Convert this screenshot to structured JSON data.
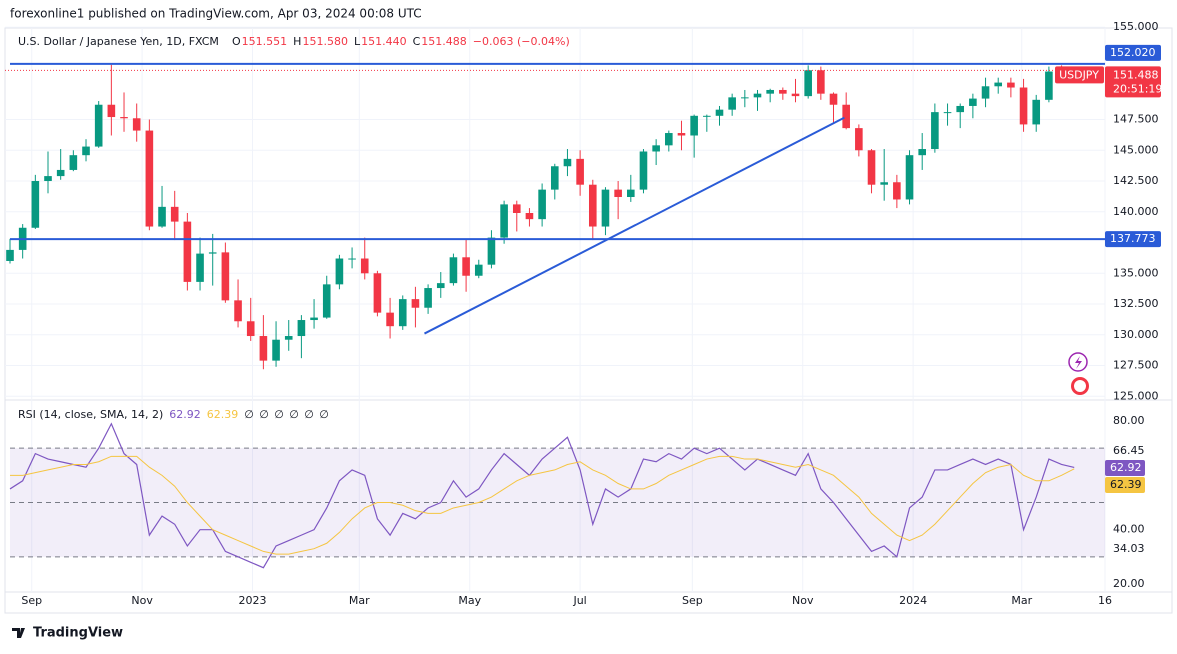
{
  "header": {
    "publisher": "forexonline1 published on TradingView.com, Apr 03, 2024 00:08 UTC",
    "instrument": "U.S. Dollar / Japanese Yen, 1D, FXCM",
    "legend": [
      {
        "key": "O",
        "value": "151.551"
      },
      {
        "key": "H",
        "value": "151.580"
      },
      {
        "key": "L",
        "value": "151.440"
      },
      {
        "key": "C",
        "value": "151.488"
      }
    ],
    "change": "−0.063 (−0.04%)",
    "brand": "TradingView"
  },
  "chart_data": [
    {
      "type": "candlestick",
      "up_color": "#089981",
      "down_color": "#f23645",
      "grid": true,
      "xlim": [
        0,
        605
      ],
      "xticks": [
        {
          "value": 12,
          "label": "Sep"
        },
        {
          "value": 73,
          "label": "Nov"
        },
        {
          "value": 134,
          "label": "2023"
        },
        {
          "value": 193,
          "label": "Mar"
        },
        {
          "value": 254,
          "label": "May"
        },
        {
          "value": 315,
          "label": "Jul"
        },
        {
          "value": 377,
          "label": "Sep"
        },
        {
          "value": 438,
          "label": "Nov"
        },
        {
          "value": 499,
          "label": "2024"
        },
        {
          "value": 559,
          "label": "Mar"
        },
        {
          "value": 605,
          "label": "16"
        }
      ],
      "ylim": [
        124.7,
        155.1
      ],
      "yticks": [
        {
          "value": 155,
          "label": "155.000"
        },
        {
          "value": 147.5,
          "label": "147.500"
        },
        {
          "value": 145,
          "label": "145.000"
        },
        {
          "value": 142.5,
          "label": "142.500"
        },
        {
          "value": 140,
          "label": "140.000"
        },
        {
          "value": 135,
          "label": "135.000"
        },
        {
          "value": 132.5,
          "label": "132.500"
        },
        {
          "value": 130,
          "label": "130.000"
        },
        {
          "value": 127.5,
          "label": "127.500"
        },
        {
          "value": 125,
          "label": "125.000"
        }
      ],
      "x": [
        0,
        7,
        14,
        21,
        28,
        35,
        42,
        49,
        56,
        63,
        70,
        77,
        84,
        91,
        98,
        105,
        112,
        119,
        126,
        133,
        140,
        147,
        154,
        161,
        168,
        175,
        182,
        189,
        196,
        203,
        210,
        217,
        224,
        231,
        238,
        245,
        252,
        259,
        266,
        273,
        280,
        287,
        294,
        301,
        308,
        315,
        322,
        329,
        336,
        343,
        350,
        357,
        364,
        371,
        378,
        385,
        392,
        399,
        406,
        413,
        420,
        427,
        434,
        441,
        448,
        455,
        462,
        469,
        476,
        483,
        490,
        497,
        504,
        511,
        518,
        525,
        532,
        539,
        546,
        553,
        560,
        567,
        574,
        581,
        588
      ],
      "open": [
        136.0,
        136.9,
        138.7,
        142.5,
        142.9,
        143.4,
        144.6,
        145.3,
        148.7,
        147.7,
        147.6,
        146.6,
        138.8,
        140.4,
        139.2,
        134.3,
        136.6,
        136.7,
        132.8,
        131.1,
        129.9,
        127.9,
        129.6,
        129.9,
        131.2,
        131.4,
        134.1,
        136.2,
        136.2,
        135.0,
        131.8,
        130.7,
        132.9,
        132.2,
        133.8,
        134.2,
        136.3,
        134.8,
        135.7,
        137.9,
        140.6,
        139.9,
        139.4,
        141.8,
        143.7,
        144.3,
        142.2,
        138.8,
        141.8,
        141.2,
        141.8,
        144.9,
        145.4,
        146.4,
        146.2,
        147.8,
        147.8,
        148.3,
        149.3,
        149.3,
        149.6,
        149.9,
        149.6,
        149.4,
        151.5,
        149.6,
        148.7,
        146.8,
        145.0,
        142.2,
        142.4,
        141.0,
        144.6,
        145.1,
        148.1,
        148.1,
        148.6,
        149.2,
        150.2,
        150.5,
        150.1,
        147.1,
        149.1,
        151.4,
        151.3
      ],
      "high": [
        137.8,
        139.0,
        143.0,
        144.9,
        145.1,
        145.0,
        145.9,
        149.0,
        151.95,
        149.7,
        148.8,
        147.5,
        142.1,
        141.7,
        139.9,
        137.9,
        138.2,
        137.5,
        134.5,
        133.0,
        131.6,
        131.1,
        131.2,
        131.6,
        132.9,
        134.8,
        136.5,
        137.1,
        137.9,
        135.2,
        133.0,
        133.2,
        133.9,
        134.1,
        135.1,
        136.6,
        137.8,
        136.1,
        138.5,
        140.9,
        140.9,
        140.3,
        142.3,
        143.9,
        145.1,
        145.0,
        142.6,
        142.0,
        142.5,
        143.0,
        145.1,
        145.9,
        146.6,
        147.4,
        147.9,
        147.9,
        148.6,
        149.6,
        149.9,
        149.9,
        150.0,
        150.1,
        150.8,
        151.9,
        151.8,
        149.7,
        149.7,
        147.1,
        145.1,
        145.1,
        143.0,
        145.0,
        146.4,
        148.8,
        148.8,
        148.8,
        149.6,
        150.9,
        150.9,
        150.9,
        150.8,
        149.5,
        151.8,
        151.9,
        151.76
      ],
      "low": [
        135.8,
        136.2,
        138.6,
        141.5,
        142.6,
        143.3,
        144.1,
        145.2,
        146.2,
        146.5,
        145.7,
        138.5,
        138.7,
        137.7,
        133.6,
        133.6,
        134.0,
        132.6,
        130.6,
        129.5,
        127.2,
        127.4,
        128.7,
        128.1,
        130.5,
        131.3,
        133.7,
        135.4,
        134.5,
        131.5,
        129.7,
        130.4,
        130.6,
        131.7,
        133.0,
        134.0,
        133.5,
        134.6,
        135.4,
        137.4,
        138.4,
        138.8,
        138.8,
        141.0,
        142.9,
        141.3,
        137.7,
        138.1,
        139.4,
        140.8,
        141.5,
        143.8,
        144.9,
        145.0,
        144.4,
        146.5,
        147.0,
        147.8,
        148.5,
        148.2,
        148.9,
        149.1,
        148.9,
        149.2,
        149.1,
        147.2,
        146.7,
        144.5,
        141.5,
        140.9,
        140.3,
        140.6,
        143.4,
        144.8,
        147.0,
        146.8,
        147.6,
        148.5,
        149.6,
        149.3,
        146.5,
        146.5,
        148.9,
        150.8,
        150.5
      ],
      "close": [
        136.9,
        138.7,
        142.5,
        142.9,
        143.4,
        144.6,
        145.3,
        148.7,
        147.7,
        147.6,
        146.6,
        138.8,
        140.4,
        139.2,
        134.3,
        136.6,
        136.7,
        132.8,
        131.1,
        129.9,
        127.9,
        129.6,
        129.9,
        131.2,
        131.4,
        134.1,
        136.2,
        136.2,
        135.0,
        131.8,
        130.7,
        132.9,
        132.2,
        133.8,
        134.2,
        136.3,
        134.8,
        135.7,
        137.9,
        140.6,
        139.9,
        139.4,
        141.8,
        143.7,
        144.3,
        142.2,
        138.8,
        141.8,
        141.2,
        141.8,
        144.9,
        145.4,
        146.4,
        146.2,
        147.8,
        147.8,
        148.3,
        149.3,
        149.3,
        149.6,
        149.9,
        149.6,
        149.4,
        151.5,
        149.6,
        148.7,
        146.8,
        145.0,
        142.2,
        142.4,
        141.0,
        144.6,
        145.1,
        148.1,
        148.1,
        148.6,
        149.2,
        150.2,
        150.5,
        150.1,
        147.1,
        149.1,
        151.4,
        151.3,
        151.488
      ],
      "hlines": [
        {
          "value": 152.02,
          "label": "152.020",
          "color": "#2a5bd7"
        },
        {
          "value": 137.773,
          "label": "137.773",
          "color": "#2a5bd7"
        }
      ],
      "trendline": {
        "x": [
          229,
          461
        ],
        "y": [
          130.1,
          147.65
        ],
        "color": "#2a5bd7"
      },
      "last_price": {
        "value": 151.488,
        "label": "151.488",
        "symbol": "USDJPY",
        "countdown": "20:51:19",
        "color": "#f23645"
      }
    },
    {
      "type": "line",
      "title": "RSI (14, close, SMA, 14, 2)",
      "empty_values": [
        "∅",
        "∅",
        "∅",
        "∅",
        "∅",
        "∅"
      ],
      "ylim": [
        17.8,
        87
      ],
      "yticks": [
        {
          "value": 80,
          "label": "80.00"
        },
        {
          "value": 40,
          "label": "40.00"
        },
        {
          "value": 20,
          "label": "20.00"
        }
      ],
      "range_labels": [
        66.45,
        34.03
      ],
      "bands": [
        70,
        50,
        30
      ],
      "band_color": "#7e57c2",
      "series": [
        {
          "color": "#7e57c2",
          "values": [
            55,
            58,
            68,
            66,
            65,
            64,
            63,
            70,
            79,
            68,
            64,
            38,
            45,
            42,
            34,
            40,
            40,
            32,
            30,
            28,
            26,
            34,
            36,
            38,
            40,
            48,
            58,
            62,
            60,
            44,
            38,
            46,
            44,
            48,
            50,
            58,
            52,
            55,
            62,
            68,
            64,
            60,
            66,
            70,
            74,
            62,
            42,
            55,
            52,
            55,
            66,
            65,
            68,
            66,
            70,
            68,
            70,
            66,
            62,
            66,
            64,
            62,
            60,
            68,
            55,
            50,
            44,
            38,
            32,
            34,
            30,
            48,
            52,
            62,
            62,
            64,
            66,
            64,
            66,
            64,
            40,
            52,
            66,
            64,
            62.92
          ]
        },
        {
          "color": "#f5c542",
          "values": [
            60,
            60,
            61,
            62,
            63,
            64,
            64,
            65,
            67,
            67,
            67,
            63,
            60,
            56,
            50,
            45,
            40,
            38,
            36,
            34,
            32,
            31,
            31,
            32,
            33,
            35,
            39,
            44,
            48,
            50,
            50,
            49,
            47,
            46,
            46,
            48,
            49,
            50,
            52,
            55,
            58,
            60,
            61,
            62,
            64,
            65,
            62,
            60,
            57,
            55,
            55,
            57,
            60,
            62,
            64,
            66,
            67,
            67,
            66,
            66,
            65,
            64,
            63,
            64,
            62,
            60,
            56,
            52,
            46,
            42,
            38,
            36,
            38,
            42,
            47,
            52,
            57,
            61,
            63,
            64,
            60,
            58,
            58,
            60,
            62.39
          ]
        }
      ]
    }
  ]
}
